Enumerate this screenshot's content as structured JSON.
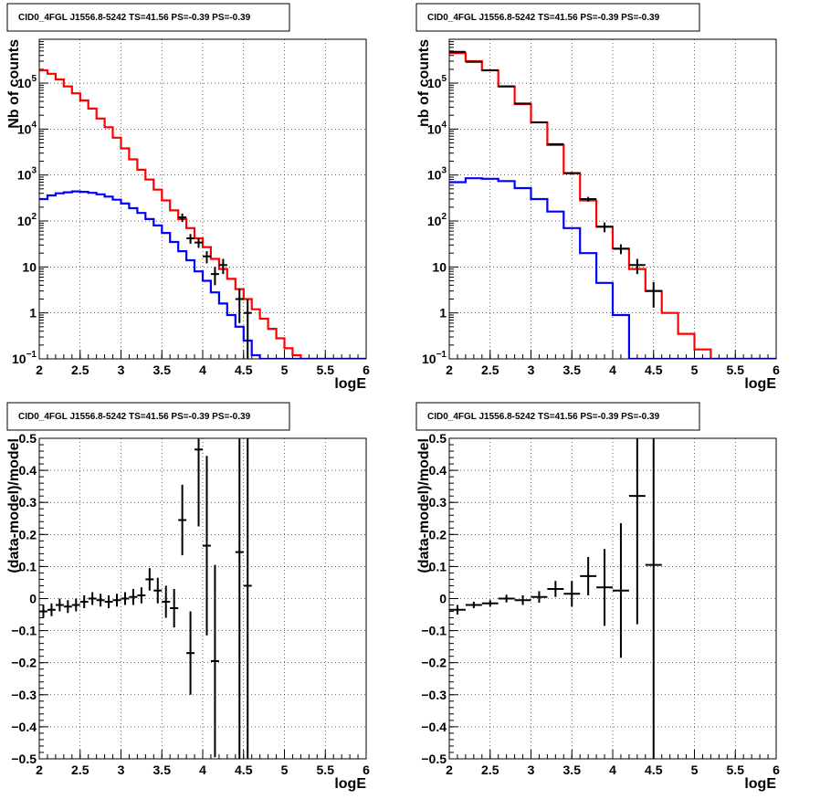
{
  "panels": [
    {
      "title": "CID0_4FGL J1556.8-5242 TS=41.56 PS=-0.39 PS=-0.39",
      "xlabel": "logE",
      "ylabel": "Nb of counts",
      "type": "counts",
      "xlim": [
        2,
        6
      ],
      "ylim": [
        0.1,
        900000
      ],
      "yscale": "log",
      "xticks": [
        "2",
        "2.5",
        "3",
        "3.5",
        "4",
        "4.5",
        "5",
        "5.5",
        "6"
      ],
      "yticks": [
        {
          "v": 0.1,
          "m": "10",
          "e": "−1"
        },
        {
          "v": 1,
          "m": "1",
          "e": ""
        },
        {
          "v": 10,
          "m": "10",
          "e": ""
        },
        {
          "v": 100,
          "m": "10",
          "e": "2"
        },
        {
          "v": 1000,
          "m": "10",
          "e": "3"
        },
        {
          "v": 10000,
          "m": "10",
          "e": "4"
        },
        {
          "v": 100000,
          "m": "10",
          "e": "5"
        }
      ],
      "grid": true
    },
    {
      "title": "CID0_4FGL J1556.8-5242 TS=41.56 PS=-0.39 PS=-0.39",
      "xlabel": "logE",
      "ylabel": "nb of counts",
      "type": "counts",
      "xlim": [
        2,
        6
      ],
      "ylim": [
        0.1,
        900000
      ],
      "yscale": "log",
      "xticks": [
        "2",
        "2.5",
        "3",
        "3.5",
        "4",
        "4.5",
        "5",
        "5.5",
        "6"
      ],
      "yticks": [
        {
          "v": 0.1,
          "m": "10",
          "e": "−1"
        },
        {
          "v": 1,
          "m": "1",
          "e": ""
        },
        {
          "v": 10,
          "m": "10",
          "e": ""
        },
        {
          "v": 100,
          "m": "10",
          "e": "2"
        },
        {
          "v": 1000,
          "m": "10",
          "e": "3"
        },
        {
          "v": 10000,
          "m": "10",
          "e": "4"
        },
        {
          "v": 100000,
          "m": "10",
          "e": "5"
        }
      ],
      "grid": true
    },
    {
      "title": "CID0_4FGL J1556.8-5242 TS=41.56 PS=-0.39 PS=-0.39",
      "xlabel": "logE",
      "ylabel": "(data-model)/model",
      "type": "residual",
      "xlim": [
        2,
        6
      ],
      "ylim": [
        -0.5,
        0.5
      ],
      "yscale": "linear",
      "xticks": [
        "2",
        "2.5",
        "3",
        "3.5",
        "4",
        "4.5",
        "5",
        "5.5",
        "6"
      ],
      "yticks": [
        "−0.5",
        "−0.4",
        "−0.3",
        "−0.2",
        "−0.1",
        "0",
        "0.1",
        "0.2",
        "0.3",
        "0.4",
        "0.5"
      ],
      "grid": true
    },
    {
      "title": "CID0_4FGL J1556.8-5242 TS=41.56 PS=-0.39 PS=-0.39",
      "xlabel": "logE",
      "ylabel": "(data-model)/model",
      "type": "residual",
      "xlim": [
        2,
        6
      ],
      "ylim": [
        -0.5,
        0.5
      ],
      "yscale": "linear",
      "xticks": [
        "2",
        "2.5",
        "3",
        "3.5",
        "4",
        "4.5",
        "5",
        "5.5",
        "6"
      ],
      "yticks": [
        "−0.5",
        "−0.4",
        "−0.3",
        "−0.2",
        "−0.1",
        "0",
        "0.1",
        "0.2",
        "0.3",
        "0.4",
        "0.5"
      ],
      "grid": true
    }
  ],
  "chart_data": [
    {
      "type": "line",
      "title": "CID0_4FGL J1556.8-5242 TS=41.56 PS=-0.39 PS=-0.39",
      "xlabel": "logE",
      "ylabel": "Nb of counts",
      "xlim": [
        2,
        6
      ],
      "ylim": [
        0.1,
        900000
      ],
      "yscale": "log",
      "bin_edges": [
        2.0,
        2.1,
        2.2,
        2.3,
        2.4,
        2.5,
        2.6,
        2.7,
        2.8,
        2.9,
        3.0,
        3.1,
        3.2,
        3.3,
        3.4,
        3.5,
        3.6,
        3.7,
        3.8,
        3.9,
        4.0,
        4.1,
        4.2,
        4.3,
        4.4,
        4.5,
        4.6,
        4.7,
        4.8,
        4.9,
        5.0,
        5.1,
        5.2,
        5.3,
        6.0
      ],
      "series": [
        {
          "color": "#ff0000",
          "values": [
            190000,
            160000,
            120000,
            85000,
            60000,
            42000,
            28000,
            17000,
            11000,
            6500,
            3800,
            2200,
            1300,
            800,
            480,
            280,
            170,
            110,
            70,
            42,
            27,
            15,
            9,
            5.5,
            3.3,
            2.0,
            1.2,
            0.75,
            0.45,
            0.28,
            0.17,
            0.12,
            0.1,
            0.1
          ]
        },
        {
          "color": "#0000ff",
          "values": [
            300,
            360,
            400,
            420,
            440,
            430,
            410,
            380,
            340,
            290,
            240,
            190,
            150,
            110,
            80,
            55,
            35,
            22,
            14,
            8,
            5,
            2.8,
            1.6,
            0.9,
            0.5,
            0.25,
            0.12,
            0.1,
            0.1,
            0.1,
            0.1,
            0.1,
            0.1,
            0.1
          ]
        }
      ],
      "points": [
        {
          "x": 3.75,
          "y": 120,
          "yerr": 25
        },
        {
          "x": 3.85,
          "y": 42,
          "yerr": 10
        },
        {
          "x": 3.95,
          "y": 34,
          "yerr": 8
        },
        {
          "x": 4.05,
          "y": 17,
          "yerr": 5
        },
        {
          "x": 4.15,
          "y": 7,
          "yerr": 3
        },
        {
          "x": 4.25,
          "y": 11,
          "yerr": 4
        },
        {
          "x": 4.45,
          "y": 2,
          "yerr": 1.4
        },
        {
          "x": 4.55,
          "y": 1,
          "yerr": 0.97
        }
      ]
    },
    {
      "type": "line",
      "title": "CID0_4FGL J1556.8-5242 TS=41.56 PS=-0.39 PS=-0.39",
      "xlabel": "logE",
      "ylabel": "nb of counts",
      "xlim": [
        2,
        6
      ],
      "ylim": [
        0.1,
        900000
      ],
      "yscale": "log",
      "bin_edges": [
        2.0,
        2.2,
        2.4,
        2.6,
        2.8,
        3.0,
        3.2,
        3.4,
        3.6,
        3.8,
        4.0,
        4.2,
        4.4,
        4.6,
        4.8,
        5.0,
        5.2,
        5.4,
        6.0
      ],
      "series": [
        {
          "color": "#ff0000",
          "values": [
            450000,
            300000,
            190000,
            85000,
            35000,
            14000,
            4500,
            1100,
            280,
            75,
            25,
            9,
            3,
            1,
            0.35,
            0.16,
            0.1,
            0.1
          ]
        },
        {
          "color": "#0000ff",
          "values": [
            700,
            850,
            830,
            740,
            520,
            300,
            160,
            70,
            20,
            4.5,
            0.9,
            0.1,
            0.1,
            0.1,
            0.1,
            0.1,
            0.1,
            0.1
          ]
        }
      ],
      "points": [
        {
          "x": 2.1,
          "y": 480000,
          "yerr": 5000
        },
        {
          "x": 2.3,
          "y": 290000,
          "yerr": 3000
        },
        {
          "x": 2.5,
          "y": 190000,
          "yerr": 2000
        },
        {
          "x": 2.7,
          "y": 85000,
          "yerr": 1000
        },
        {
          "x": 2.9,
          "y": 36000,
          "yerr": 600
        },
        {
          "x": 3.1,
          "y": 14000,
          "yerr": 300
        },
        {
          "x": 3.3,
          "y": 4700,
          "yerr": 150
        },
        {
          "x": 3.5,
          "y": 1100,
          "yerr": 70
        },
        {
          "x": 3.7,
          "y": 300,
          "yerr": 35
        },
        {
          "x": 3.9,
          "y": 75,
          "yerr": 18
        },
        {
          "x": 4.1,
          "y": 25,
          "yerr": 6
        },
        {
          "x": 4.3,
          "y": 11,
          "yerr": 4
        },
        {
          "x": 4.5,
          "y": 3,
          "yerr": 1.7
        }
      ]
    },
    {
      "type": "scatter",
      "title": "CID0_4FGL J1556.8-5242 TS=41.56 PS=-0.39 PS=-0.39",
      "xlabel": "logE",
      "ylabel": "(data-model)/model",
      "xlim": [
        2,
        6
      ],
      "ylim": [
        -0.5,
        0.5
      ],
      "points": [
        {
          "x": 2.05,
          "y": -0.04,
          "yerr": 0.02
        },
        {
          "x": 2.15,
          "y": -0.035,
          "yerr": 0.02
        },
        {
          "x": 2.25,
          "y": -0.02,
          "yerr": 0.02
        },
        {
          "x": 2.35,
          "y": -0.025,
          "yerr": 0.02
        },
        {
          "x": 2.45,
          "y": -0.02,
          "yerr": 0.02
        },
        {
          "x": 2.55,
          "y": -0.01,
          "yerr": 0.02
        },
        {
          "x": 2.65,
          "y": 0.0,
          "yerr": 0.02
        },
        {
          "x": 2.75,
          "y": -0.005,
          "yerr": 0.02
        },
        {
          "x": 2.85,
          "y": -0.01,
          "yerr": 0.02
        },
        {
          "x": 2.95,
          "y": -0.005,
          "yerr": 0.02
        },
        {
          "x": 3.05,
          "y": 0.0,
          "yerr": 0.02
        },
        {
          "x": 3.15,
          "y": 0.005,
          "yerr": 0.025
        },
        {
          "x": 3.25,
          "y": 0.01,
          "yerr": 0.025
        },
        {
          "x": 3.35,
          "y": 0.06,
          "yerr": 0.035
        },
        {
          "x": 3.45,
          "y": 0.025,
          "yerr": 0.04
        },
        {
          "x": 3.55,
          "y": -0.01,
          "yerr": 0.05
        },
        {
          "x": 3.65,
          "y": -0.03,
          "yerr": 0.06
        },
        {
          "x": 3.75,
          "y": 0.245,
          "yerr": 0.11
        },
        {
          "x": 3.85,
          "y": -0.17,
          "yerr": 0.13
        },
        {
          "x": 3.95,
          "y": 0.465,
          "yerr": 0.24
        },
        {
          "x": 4.05,
          "y": 0.165,
          "yerr": 0.28
        },
        {
          "x": 4.15,
          "y": -0.195,
          "yerr": 0.3
        },
        {
          "x": 4.45,
          "y": 0.145,
          "yerr": 0.7
        },
        {
          "x": 4.55,
          "y": 0.04,
          "yerr": 0.98
        }
      ]
    },
    {
      "type": "scatter",
      "title": "CID0_4FGL J1556.8-5242 TS=41.56 PS=-0.39 PS=-0.39",
      "xlabel": "logE",
      "ylabel": "(data-model)/model",
      "xlim": [
        2,
        6
      ],
      "ylim": [
        -0.5,
        0.5
      ],
      "points": [
        {
          "x": 2.1,
          "y": -0.035,
          "yerr": 0.015
        },
        {
          "x": 2.3,
          "y": -0.02,
          "yerr": 0.01
        },
        {
          "x": 2.5,
          "y": -0.015,
          "yerr": 0.01
        },
        {
          "x": 2.7,
          "y": 0.0,
          "yerr": 0.012
        },
        {
          "x": 2.9,
          "y": -0.005,
          "yerr": 0.015
        },
        {
          "x": 3.1,
          "y": 0.005,
          "yerr": 0.018
        },
        {
          "x": 3.3,
          "y": 0.03,
          "yerr": 0.025
        },
        {
          "x": 3.5,
          "y": 0.015,
          "yerr": 0.04
        },
        {
          "x": 3.7,
          "y": 0.07,
          "yerr": 0.06
        },
        {
          "x": 3.9,
          "y": 0.035,
          "yerr": 0.12
        },
        {
          "x": 4.1,
          "y": 0.025,
          "yerr": 0.21
        },
        {
          "x": 4.3,
          "y": 0.32,
          "yerr": 0.4
        },
        {
          "x": 4.5,
          "y": 0.105,
          "yerr": 0.62
        }
      ]
    }
  ]
}
